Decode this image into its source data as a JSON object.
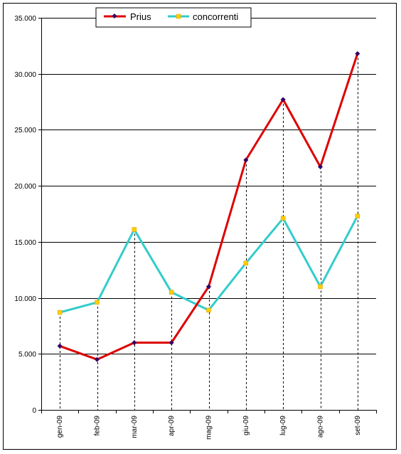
{
  "chart_data": {
    "type": "line",
    "categories": [
      "gen-09",
      "feb-09",
      "mar-09",
      "apr-09",
      "mag-09",
      "giu-09",
      "lug-09",
      "ago-09",
      "set-09"
    ],
    "series": [
      {
        "name": "Prius",
        "color": "#dd0000",
        "marker_color": "#330066",
        "marker": "diamond",
        "values": [
          5700,
          4500,
          6000,
          6000,
          11000,
          22300,
          27700,
          21700,
          31800
        ]
      },
      {
        "name": "concorrenti",
        "color": "#33cccc",
        "marker_color": "#ffcc00",
        "marker": "square",
        "values": [
          8700,
          9600,
          16100,
          10500,
          8900,
          13100,
          17100,
          11000,
          17300
        ]
      }
    ],
    "y_ticks": [
      0,
      5000,
      10000,
      15000,
      20000,
      25000,
      30000,
      35000
    ],
    "y_tick_labels": [
      "0",
      "5.000",
      "10.000",
      "15.000",
      "20.000",
      "25.000",
      "30.000",
      "35.000"
    ],
    "ylim": [
      0,
      35000
    ],
    "grid": "horizontal",
    "drop_lines": true,
    "legend_position": "top"
  }
}
